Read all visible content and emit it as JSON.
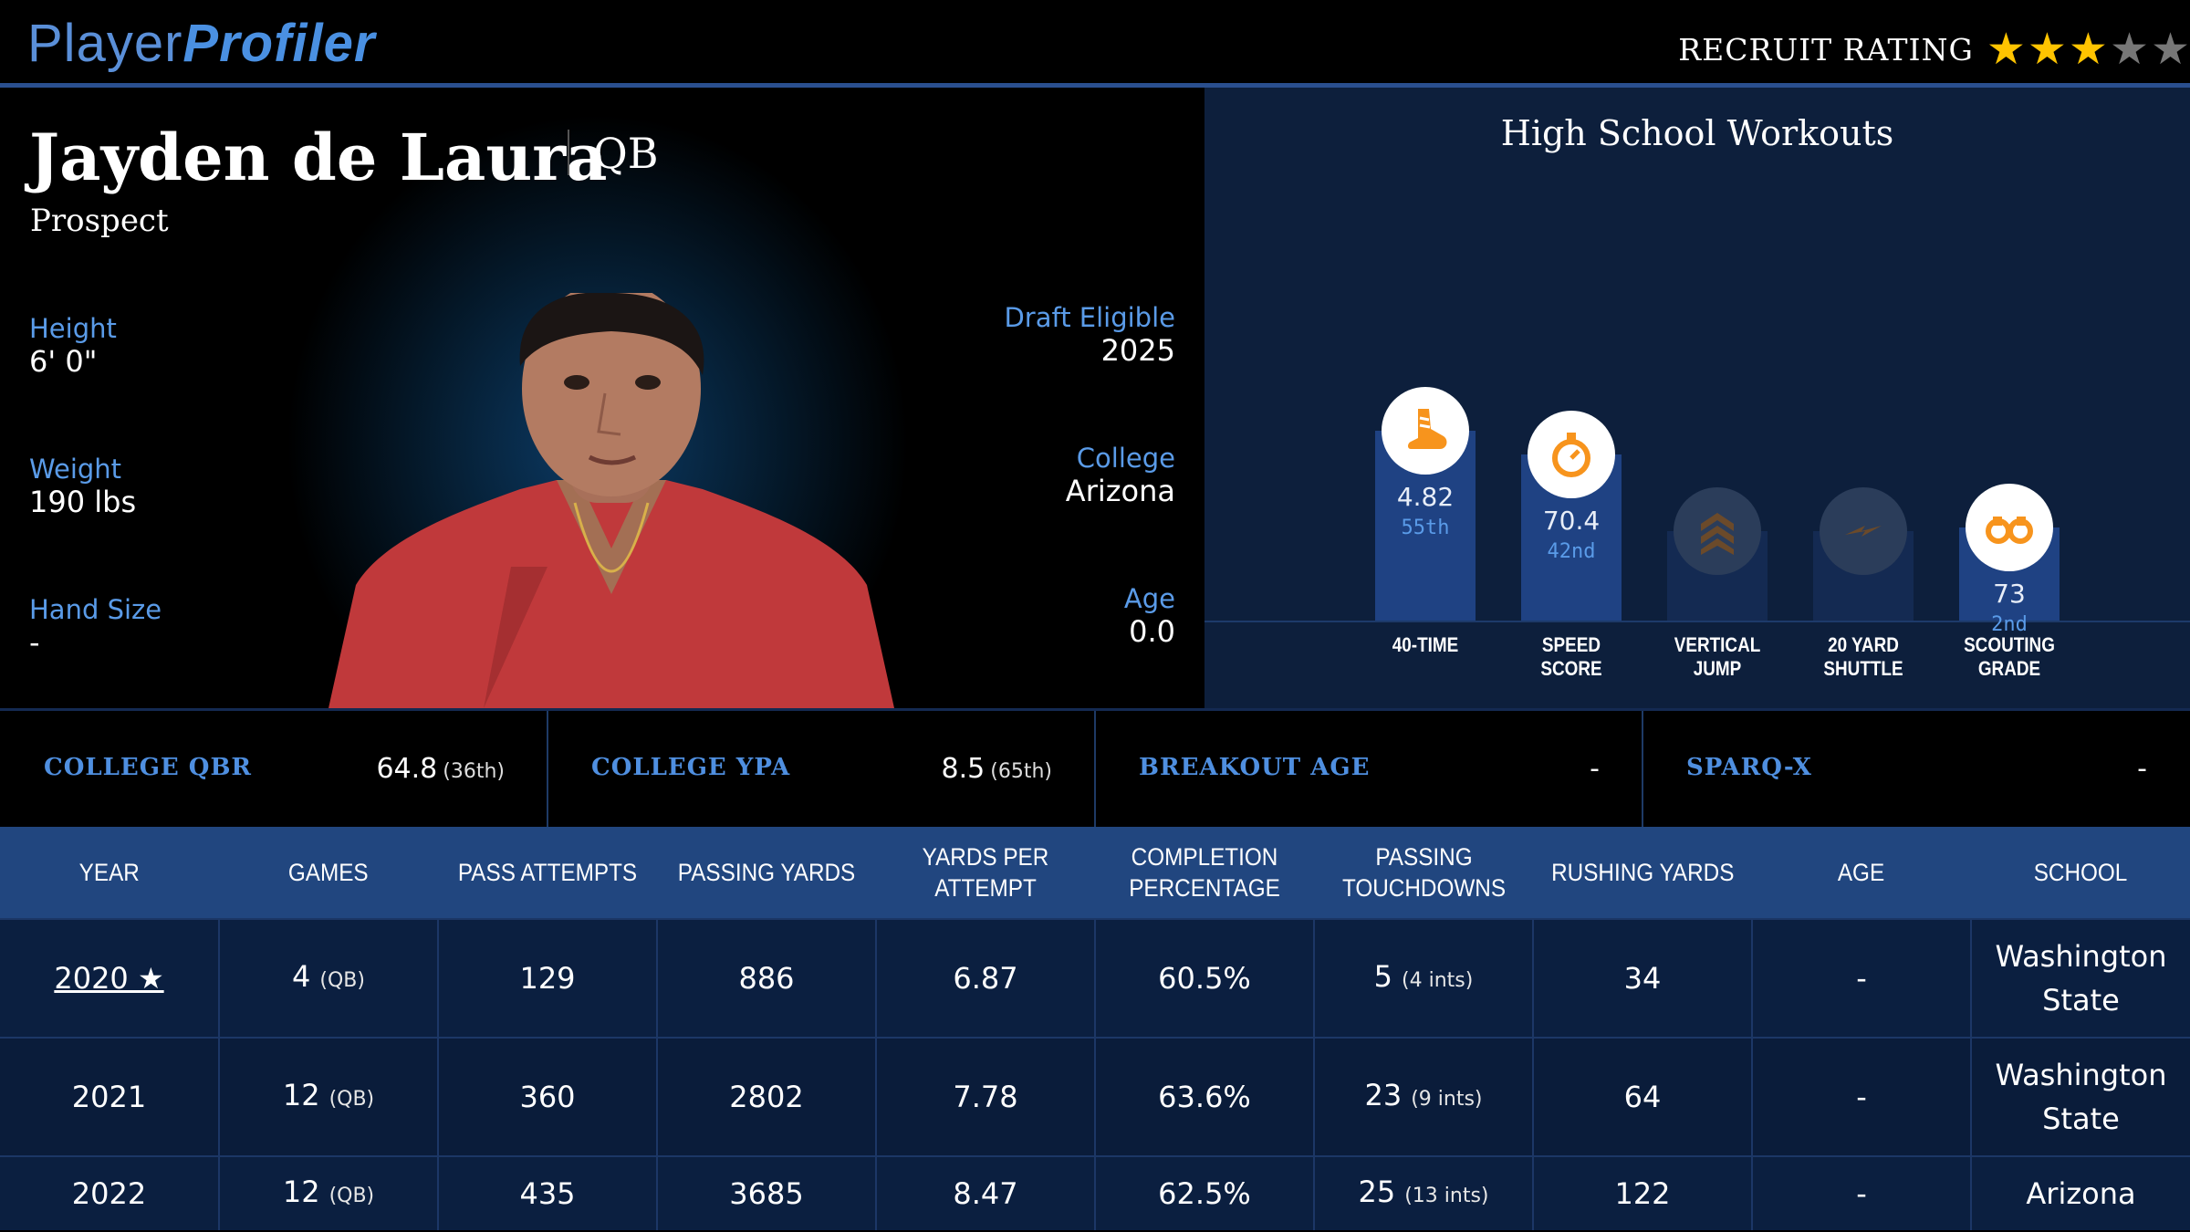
{
  "brand": {
    "left": "Player",
    "right": "Profiler"
  },
  "recruit": {
    "label": "RECRUIT RATING",
    "stars": 3,
    "max": 5,
    "star_on_color": "#ffc400",
    "star_off_color": "#777777"
  },
  "player": {
    "name": "Jayden de Laura",
    "position": "QB",
    "status": "Prospect"
  },
  "fields_left": [
    {
      "label": "Height",
      "value": "6' 0\""
    },
    {
      "label": "Weight",
      "value": "190 lbs"
    },
    {
      "label": "Hand Size",
      "value": "-"
    }
  ],
  "fields_right": [
    {
      "label": "Draft Eligible",
      "value": "2025"
    },
    {
      "label": "College",
      "value": "Arizona"
    },
    {
      "label": "Age",
      "value": "0.0"
    }
  ],
  "workouts": {
    "title": "High School Workouts",
    "items": [
      {
        "label1": "40-TIME",
        "label2": "",
        "value": "4.82",
        "pct": "55th",
        "fill": 0.55,
        "icon": "shoe-icon",
        "active": true
      },
      {
        "label1": "SPEED",
        "label2": "SCORE",
        "value": "70.4",
        "pct": "42nd",
        "fill": 0.42,
        "icon": "stopwatch-icon",
        "active": true
      },
      {
        "label1": "VERTICAL",
        "label2": "JUMP",
        "value": "",
        "pct": "",
        "fill": 0.0,
        "icon": "chevrons-up-icon",
        "active": false
      },
      {
        "label1": "20 YARD",
        "label2": "SHUTTLE",
        "value": "",
        "pct": "",
        "fill": 0.0,
        "icon": "lightning-icon",
        "active": false
      },
      {
        "label1": "SCOUTING",
        "label2": "GRADE",
        "value": "73",
        "pct": "2nd",
        "fill": 0.02,
        "icon": "binoculars-icon",
        "active": true
      }
    ]
  },
  "metrics": [
    {
      "label": "COLLEGE QBR",
      "value": "64.8",
      "pct": "(36th)"
    },
    {
      "label": "COLLEGE YPA",
      "value": "8.5",
      "pct": "(65th)"
    },
    {
      "label": "BREAKOUT AGE",
      "value": "-",
      "pct": ""
    },
    {
      "label": "SPARQ-X",
      "value": "-",
      "pct": ""
    }
  ],
  "table": {
    "headers": [
      [
        "YEAR"
      ],
      [
        "GAMES"
      ],
      [
        "PASS ATTEMPTS"
      ],
      [
        "PASSING YARDS"
      ],
      [
        "YARDS PER ATTEMPT"
      ],
      [
        "COMPLETION",
        "PERCENTAGE"
      ],
      [
        "PASSING",
        "TOUCHDOWNS"
      ],
      [
        "RUSHING YARDS"
      ],
      [
        "AGE"
      ],
      [
        "SCHOOL"
      ]
    ],
    "rows": [
      {
        "year": "2020 ★",
        "games": "4",
        "games_sub": "(QB)",
        "att": "129",
        "yds": "886",
        "ypa": "6.87",
        "cmp": "60.5%",
        "td": "5",
        "td_sub": "(4 ints)",
        "rush": "34",
        "age": "-",
        "school": [
          "Washington",
          "State"
        ]
      },
      {
        "year": "2021",
        "games": "12",
        "games_sub": "(QB)",
        "att": "360",
        "yds": "2802",
        "ypa": "7.78",
        "cmp": "63.6%",
        "td": "23",
        "td_sub": "(9 ints)",
        "rush": "64",
        "age": "-",
        "school": [
          "Washington",
          "State"
        ]
      },
      {
        "year": "2022",
        "games": "12",
        "games_sub": "(QB)",
        "att": "435",
        "yds": "3685",
        "ypa": "8.47",
        "cmp": "62.5%",
        "td": "25",
        "td_sub": "(13 ints)",
        "rush": "122",
        "age": "-",
        "school": [
          "Arizona"
        ]
      }
    ]
  }
}
